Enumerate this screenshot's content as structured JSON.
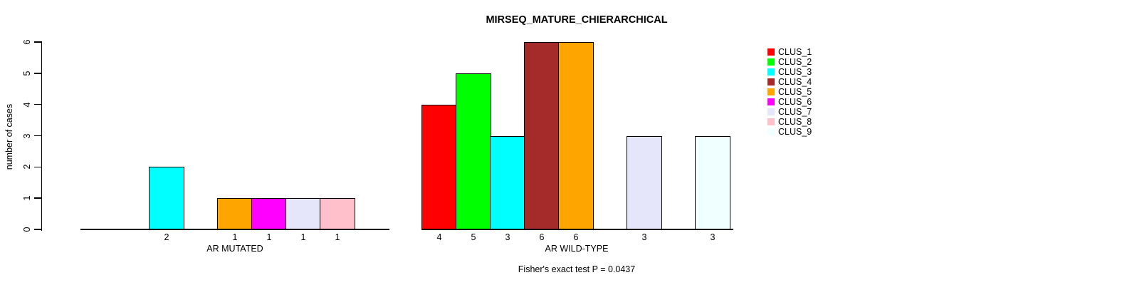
{
  "chart_data": {
    "type": "bar",
    "title": "MIRSEQ_MATURE_CHIERARCHICAL",
    "ylabel": "number of cases",
    "xlabel": "",
    "ylim": [
      0,
      6
    ],
    "y_ticks": [
      0,
      1,
      2,
      3,
      4,
      5,
      6
    ],
    "grid": false,
    "legend_position": "right",
    "clusters": [
      {
        "name": "CLUS_1",
        "color": "#FF0000"
      },
      {
        "name": "CLUS_2",
        "color": "#00FF00"
      },
      {
        "name": "CLUS_3",
        "color": "#00FFFF"
      },
      {
        "name": "CLUS_4",
        "color": "#A52A2A"
      },
      {
        "name": "CLUS_5",
        "color": "#FFA500"
      },
      {
        "name": "CLUS_6",
        "color": "#FF00FF"
      },
      {
        "name": "CLUS_7",
        "color": "#E6E6FA"
      },
      {
        "name": "CLUS_8",
        "color": "#FFC0CB"
      },
      {
        "name": "CLUS_9",
        "color": "#F0FFFF"
      }
    ],
    "groups": [
      {
        "label": "AR MUTATED",
        "values": [
          0,
          0,
          2,
          0,
          1,
          1,
          1,
          1,
          0
        ]
      },
      {
        "label": "AR WILD-TYPE",
        "values": [
          4,
          5,
          3,
          6,
          6,
          0,
          3,
          0,
          3
        ]
      }
    ],
    "bar_value_labels": "value shown under each non-zero bar",
    "annotation": "Fisher's exact test P = 0.0437"
  }
}
